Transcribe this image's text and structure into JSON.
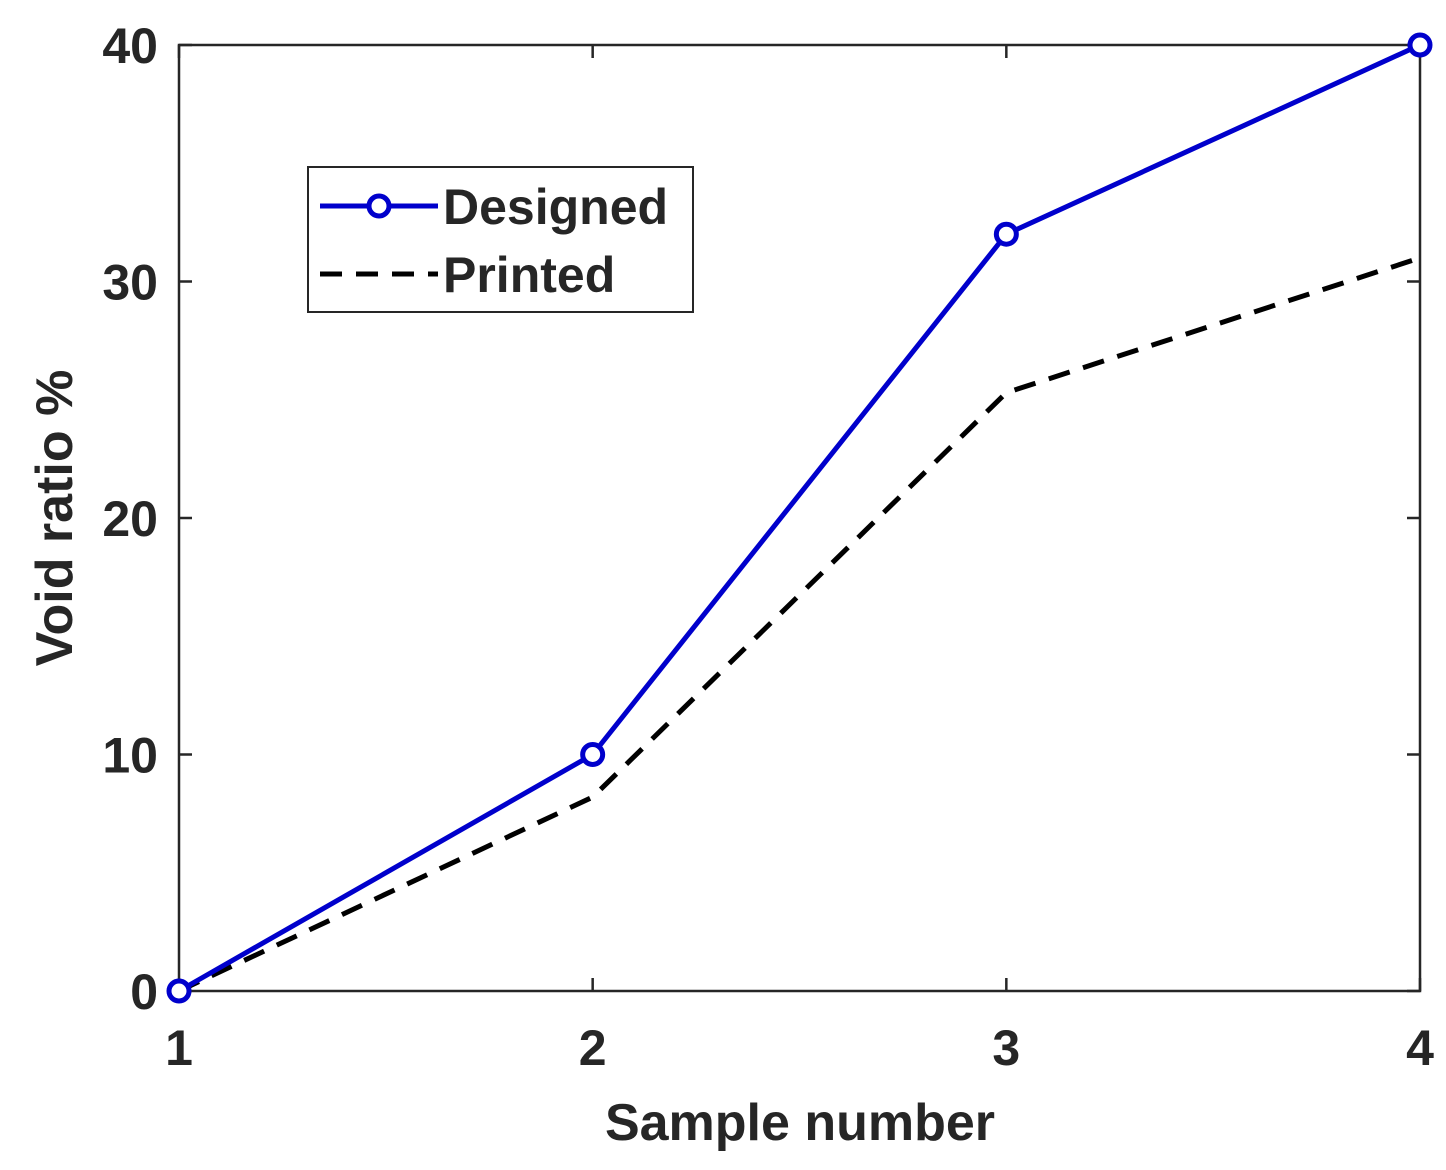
{
  "chart_data": {
    "type": "line",
    "title": "",
    "xlabel": "Sample number",
    "ylabel": "Void ratio %",
    "x": [
      1,
      2,
      3,
      4
    ],
    "xlim": [
      1,
      4
    ],
    "ylim": [
      0,
      40
    ],
    "xticks": [
      "1",
      "2",
      "3",
      "4"
    ],
    "yticks": [
      "0",
      "10",
      "20",
      "30",
      "40"
    ],
    "grid": false,
    "legend_position": "upper-left",
    "series": [
      {
        "name": "Designed",
        "values": [
          0,
          10,
          32,
          40
        ],
        "color": "#0000cc",
        "line_style": "solid",
        "marker": "circle"
      },
      {
        "name": "Printed",
        "values": [
          0,
          8.2,
          25.3,
          31
        ],
        "color": "#000000",
        "line_style": "dashed",
        "marker": "none"
      }
    ]
  }
}
